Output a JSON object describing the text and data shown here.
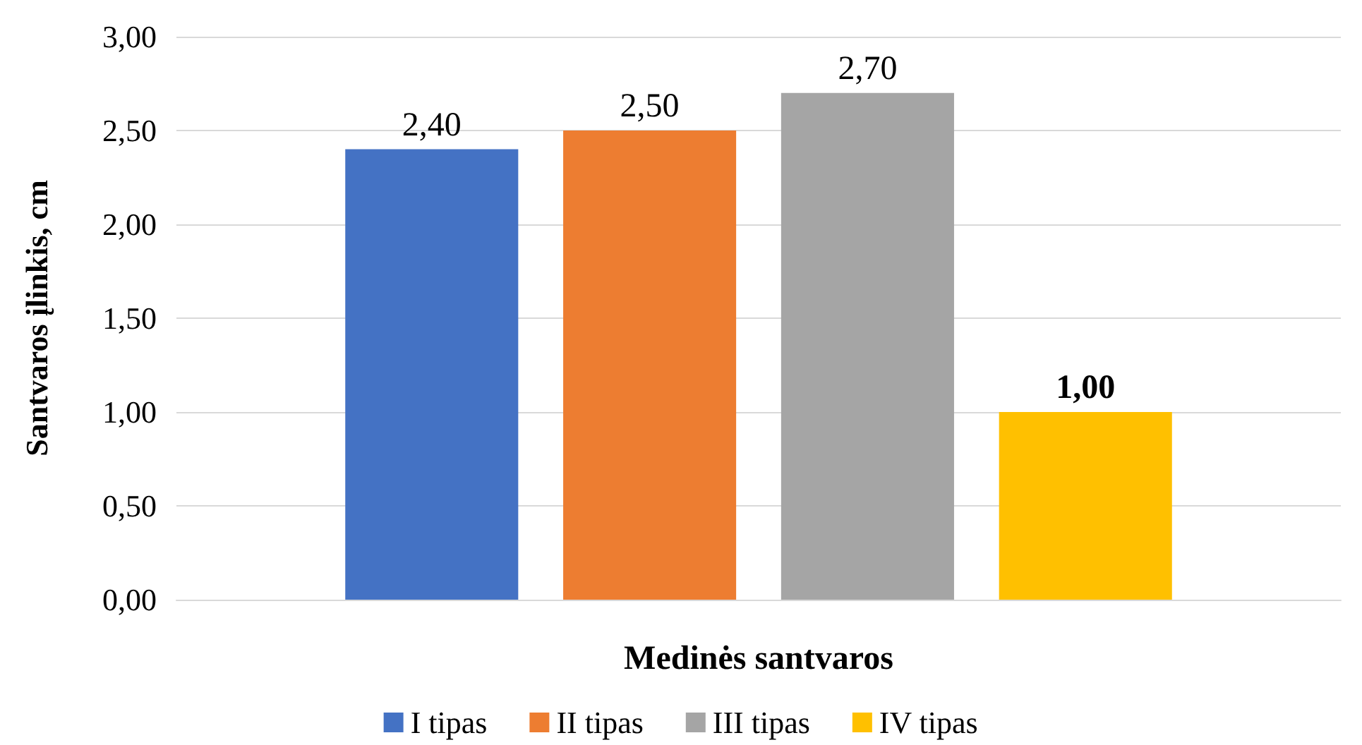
{
  "chart_data": {
    "type": "bar",
    "xlabel": "Medinės santvaros",
    "ylabel": "Santvaros įlinkis, cm",
    "categories": [
      null
    ],
    "series": [
      {
        "name": "I tipas",
        "color": "#4472c4",
        "values": [
          2.4
        ],
        "value_labels": [
          "2,40"
        ]
      },
      {
        "name": "II tipas",
        "color": "#ed7d31",
        "values": [
          2.5
        ],
        "value_labels": [
          "2,50"
        ]
      },
      {
        "name": "III tipas",
        "color": "#a5a5a5",
        "values": [
          2.7
        ],
        "value_labels": [
          "2,70"
        ]
      },
      {
        "name": "IV tipas",
        "color": "#ffc000",
        "values": [
          1.0
        ],
        "value_labels": [
          "1,00"
        ]
      }
    ],
    "ylim": [
      0,
      3
    ],
    "yticks": [
      {
        "value": 0,
        "label": "0,00"
      },
      {
        "value": 0.5,
        "label": "0,50"
      },
      {
        "value": 1,
        "label": "1,00"
      },
      {
        "value": 1.5,
        "label": "1,50"
      },
      {
        "value": 2,
        "label": "2,00"
      },
      {
        "value": 2.5,
        "label": "2,50"
      },
      {
        "value": 3,
        "label": "3,00"
      }
    ],
    "grid": "y",
    "legend": "bottom"
  }
}
